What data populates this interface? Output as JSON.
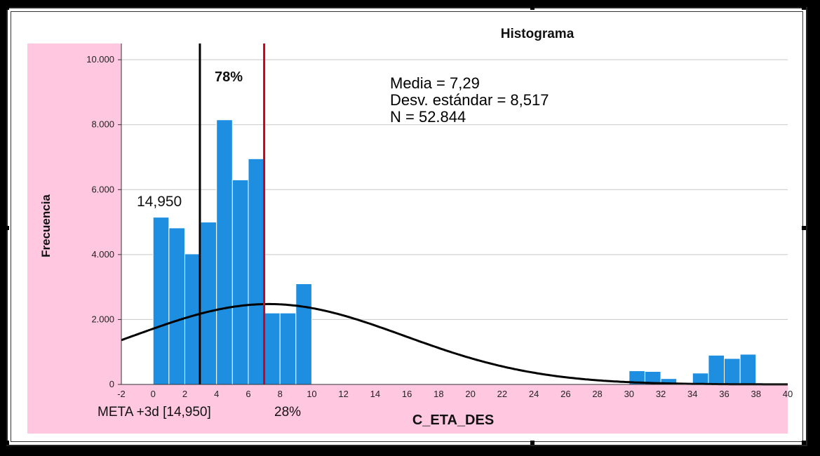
{
  "chart_data": {
    "type": "bar",
    "title": "Histograma",
    "xlabel": "C_ETA_DES",
    "ylabel": "Frecuencia",
    "xlim": [
      -2,
      40
    ],
    "ylim": [
      0,
      10500
    ],
    "x_ticks": [
      -2,
      0,
      2,
      4,
      6,
      8,
      10,
      12,
      14,
      16,
      18,
      20,
      22,
      24,
      26,
      28,
      30,
      32,
      34,
      36,
      38,
      40
    ],
    "y_ticks": [
      {
        "value": 0,
        "label": "0"
      },
      {
        "value": 2000,
        "label": "2.000"
      },
      {
        "value": 4000,
        "label": "4.000"
      },
      {
        "value": 6000,
        "label": "6.000"
      },
      {
        "value": 8000,
        "label": "8.000"
      },
      {
        "value": 10000,
        "label": "10.000"
      }
    ],
    "grid": true,
    "bin_width": 1,
    "bins": [
      {
        "x": 0,
        "value": 5150
      },
      {
        "x": 1,
        "value": 4820
      },
      {
        "x": 2,
        "value": 4020
      },
      {
        "x": 3,
        "value": 5000
      },
      {
        "x": 4,
        "value": 8150
      },
      {
        "x": 5,
        "value": 6300
      },
      {
        "x": 6,
        "value": 6950
      },
      {
        "x": 7,
        "value": 2200
      },
      {
        "x": 8,
        "value": 2200
      },
      {
        "x": 9,
        "value": 3100
      },
      {
        "x": 30,
        "value": 420
      },
      {
        "x": 31,
        "value": 400
      },
      {
        "x": 32,
        "value": 180
      },
      {
        "x": 34,
        "value": 350
      },
      {
        "x": 35,
        "value": 900
      },
      {
        "x": 36,
        "value": 800
      },
      {
        "x": 37,
        "value": 930
      }
    ],
    "normal_curve": {
      "mean": 7.29,
      "sd": 8.517,
      "n": 52844
    },
    "stats": {
      "mean": "Media = 7,29",
      "sd": "Desv. estándar = 8,517",
      "n": "N = 52.844"
    },
    "reference_lines": [
      {
        "x": 2.95,
        "color": "#000000"
      },
      {
        "x": 7.0,
        "color": "#d0021b"
      }
    ],
    "annotations": {
      "pct_above": "78%",
      "value_label": "14,950",
      "meta_label": "META +3d [14,950]",
      "pct_below": "28%"
    },
    "colors": {
      "bar_fill": "#1e8ee0",
      "bar_edge": "#ffffff",
      "background": "#ffc7e0",
      "plot_area": "#ffffff",
      "grid": "#c8c8c8",
      "curve": "#000000"
    }
  }
}
